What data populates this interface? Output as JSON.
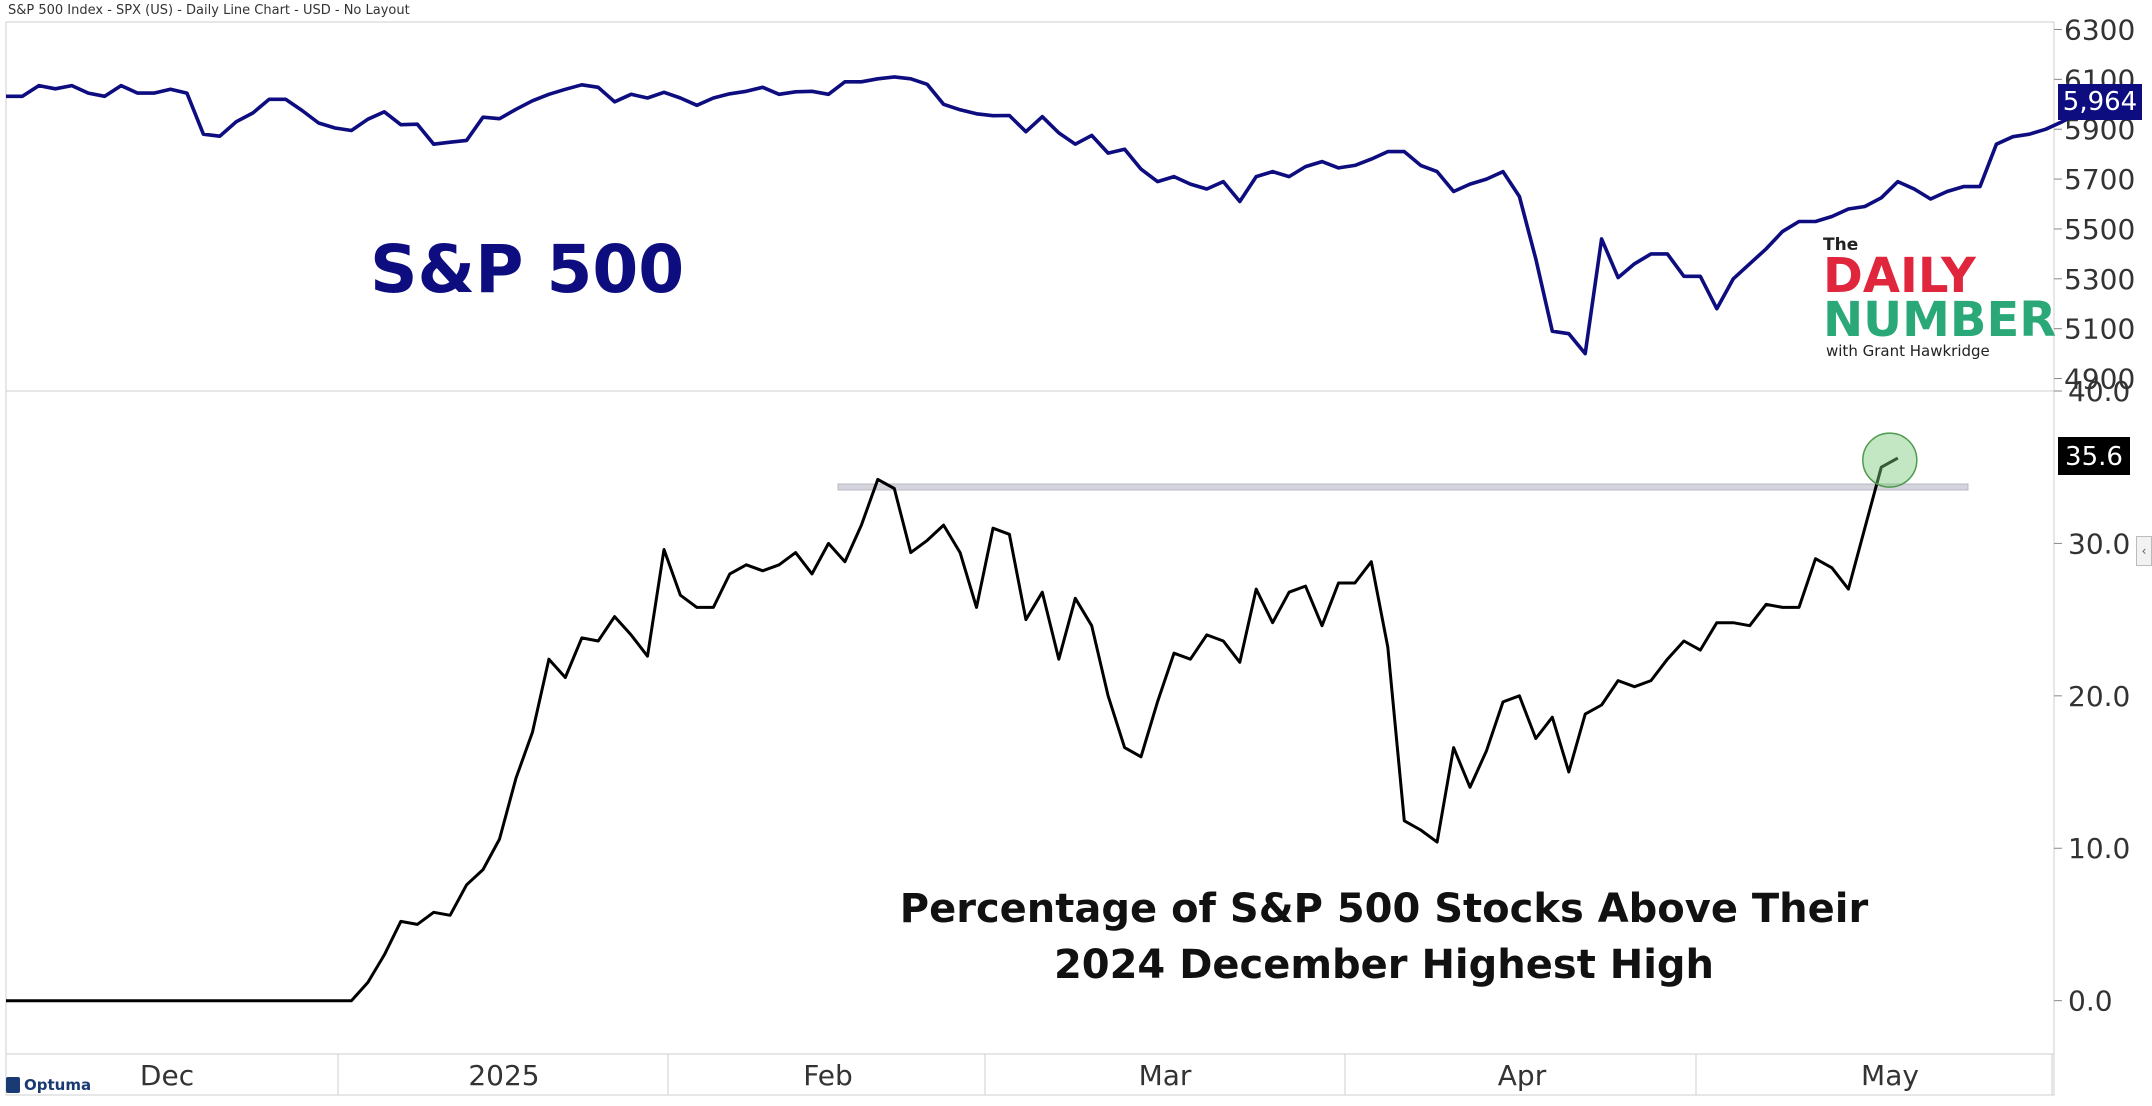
{
  "header": {
    "title": "S&P 500 Index - SPX (US) - Daily Line Chart - USD - No Layout"
  },
  "branding": {
    "logo_the": "The",
    "logo_daily": "DAILY",
    "logo_number": "NUMBER",
    "logo_with": "with Grant Hawkridge",
    "footer_brand": "Optuma"
  },
  "colors": {
    "spx_line": "#0d0d80",
    "breadth_line": "#000000",
    "daily_red": "#e0263c",
    "number_green": "#2aa878",
    "highlight_green": "#7ac77a"
  },
  "chart_data": [
    {
      "type": "line",
      "panel": "top",
      "title": "S&P 500",
      "series": [
        {
          "values": [
            6032,
            6032,
            6075,
            6062,
            6075,
            6045,
            6032,
            6075,
            6045,
            6045,
            6060,
            6045,
            5880,
            5872,
            5930,
            5965,
            6020,
            6020,
            5975,
            5925,
            5905,
            5895,
            5940,
            5970,
            5918,
            5920,
            5840,
            5848,
            5855,
            5948,
            5942,
            5980,
            6014,
            6040,
            6060,
            6078,
            6068,
            6010,
            6040,
            6025,
            6048,
            6025,
            5996,
            6025,
            6042,
            6052,
            6068,
            6040,
            6050,
            6052,
            6040,
            6090,
            6090,
            6102,
            6110,
            6102,
            6080,
            6000,
            5978,
            5962,
            5954,
            5955,
            5890,
            5950,
            5885,
            5840,
            5875,
            5804,
            5820,
            5740,
            5690,
            5710,
            5680,
            5660,
            5690,
            5610,
            5710,
            5730,
            5710,
            5750,
            5770,
            5745,
            5755,
            5780,
            5810,
            5810,
            5755,
            5730,
            5650,
            5680,
            5700,
            5730,
            5630,
            5380,
            5090,
            5080,
            5000,
            5460,
            5305,
            5360,
            5400,
            5400,
            5310,
            5310,
            5180,
            5300,
            5360,
            5420,
            5490,
            5530,
            5530,
            5550,
            5580,
            5590,
            5625,
            5690,
            5660,
            5620,
            5650,
            5670,
            5670,
            5840,
            5870,
            5880,
            5900,
            5930,
            5964
          ]
        }
      ],
      "last_value_label": "5,964",
      "y_ticks": [
        "4900",
        "5100",
        "5300",
        "5500",
        "5700",
        "5900",
        "6100",
        "6300"
      ],
      "ylim": [
        4850,
        6330
      ]
    },
    {
      "type": "line",
      "panel": "bottom",
      "title": "Percentage of S&P 500 Stocks Above Their 2024 December Highest High",
      "title_line1": "Percentage of S&P 500 Stocks Above Their",
      "title_line2": "2024 December Highest High",
      "series": [
        {
          "values": [
            0.0,
            0.0,
            0.0,
            0.0,
            0.0,
            0.0,
            0.0,
            0.0,
            0.0,
            0.0,
            0.0,
            0.0,
            0.0,
            0.0,
            0.0,
            0.0,
            0.0,
            0.0,
            0.0,
            0.0,
            0.0,
            0.0,
            1.2,
            3.0,
            5.2,
            5.0,
            5.8,
            5.6,
            7.6,
            8.6,
            10.6,
            14.6,
            17.6,
            22.4,
            21.2,
            23.8,
            23.6,
            25.2,
            24.0,
            22.6,
            29.6,
            26.6,
            25.8,
            25.8,
            28.0,
            28.6,
            28.2,
            28.6,
            29.4,
            28.0,
            30.0,
            28.8,
            31.2,
            34.2,
            33.6,
            29.4,
            30.2,
            31.2,
            29.4,
            25.8,
            31.0,
            30.6,
            25.0,
            26.8,
            22.4,
            26.4,
            24.6,
            20.0,
            16.6,
            16.0,
            19.6,
            22.8,
            22.4,
            24.0,
            23.6,
            22.2,
            27.0,
            24.8,
            26.8,
            27.2,
            24.6,
            27.4,
            27.4,
            28.8,
            23.2,
            11.8,
            11.2,
            10.4,
            16.6,
            14.0,
            16.4,
            19.6,
            20.0,
            17.2,
            18.6,
            15.0,
            18.8,
            19.4,
            21.0,
            20.6,
            21.0,
            22.4,
            23.6,
            23.0,
            24.8,
            24.8,
            24.6,
            26.0,
            25.8,
            25.8,
            29.0,
            28.4,
            27.0,
            31.0,
            35.0,
            35.6
          ]
        }
      ],
      "last_value_label": "35.6",
      "reference_level": 33.7,
      "y_ticks": [
        "0.0",
        "10.0",
        "20.0",
        "30.0",
        "40.0"
      ],
      "ylim": [
        -3.5,
        40.0
      ]
    }
  ],
  "x_axis": {
    "months": [
      "Dec",
      "2025",
      "Feb",
      "Mar",
      "Apr",
      "May"
    ]
  }
}
